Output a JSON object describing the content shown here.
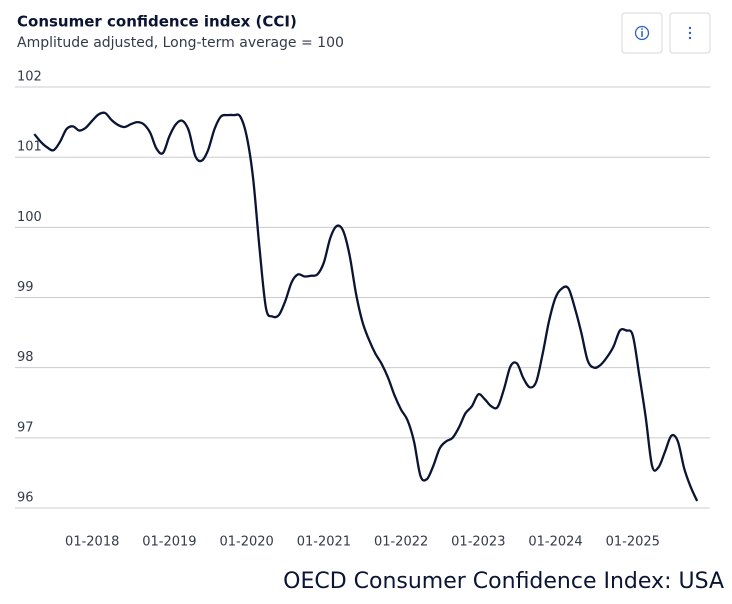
{
  "chart_data": {
    "type": "line",
    "title": "Consumer confidence index (CCI)",
    "subtitle": "Amplitude adjusted, Long-term average = 100",
    "footer": "OECD Consumer Confidence Index: USA",
    "x": [
      "2017-04",
      "2017-05",
      "2017-06",
      "2017-07",
      "2017-08",
      "2017-09",
      "2017-10",
      "2017-11",
      "2017-12",
      "2018-01",
      "2018-02",
      "2018-03",
      "2018-04",
      "2018-05",
      "2018-06",
      "2018-07",
      "2018-08",
      "2018-09",
      "2018-10",
      "2018-11",
      "2018-12",
      "2019-01",
      "2019-02",
      "2019-03",
      "2019-04",
      "2019-05",
      "2019-06",
      "2019-07",
      "2019-08",
      "2019-09",
      "2019-10",
      "2019-11",
      "2019-12",
      "2020-01",
      "2020-02",
      "2020-03",
      "2020-04",
      "2020-05",
      "2020-06",
      "2020-07",
      "2020-08",
      "2020-09",
      "2020-10",
      "2020-11",
      "2020-12",
      "2021-01",
      "2021-02",
      "2021-03",
      "2021-04",
      "2021-05",
      "2021-06",
      "2021-07",
      "2021-08",
      "2021-09",
      "2021-10",
      "2021-11",
      "2021-12",
      "2022-01",
      "2022-02",
      "2022-03",
      "2022-04",
      "2022-05",
      "2022-06",
      "2022-07",
      "2022-08",
      "2022-09",
      "2022-10",
      "2022-11",
      "2022-12",
      "2023-01",
      "2023-02",
      "2023-03",
      "2023-04",
      "2023-05",
      "2023-06",
      "2023-07",
      "2023-08",
      "2023-09",
      "2023-10",
      "2023-11",
      "2023-12",
      "2024-01",
      "2024-02",
      "2024-03",
      "2024-04",
      "2024-05",
      "2024-06",
      "2024-07",
      "2024-08",
      "2024-09",
      "2024-10",
      "2024-11",
      "2024-12",
      "2025-01",
      "2025-02",
      "2025-03",
      "2025-04",
      "2025-05",
      "2025-06",
      "2025-07",
      "2025-08",
      "2025-09",
      "2025-10",
      "2025-11"
    ],
    "series": [
      {
        "name": "CCI",
        "color": "#0b1533",
        "values": [
          101.33,
          101.22,
          101.14,
          101.1,
          101.22,
          101.4,
          101.44,
          101.38,
          101.42,
          101.52,
          101.61,
          101.63,
          101.53,
          101.46,
          101.43,
          101.47,
          101.5,
          101.47,
          101.35,
          101.12,
          101.06,
          101.3,
          101.47,
          101.52,
          101.38,
          101.02,
          100.95,
          101.1,
          101.4,
          101.58,
          101.6,
          101.6,
          101.58,
          101.3,
          100.7,
          99.7,
          98.85,
          98.73,
          98.75,
          98.95,
          99.22,
          99.33,
          99.3,
          99.31,
          99.33,
          99.5,
          99.85,
          100.02,
          99.95,
          99.6,
          99.05,
          98.65,
          98.4,
          98.2,
          98.05,
          97.85,
          97.6,
          97.4,
          97.25,
          96.95,
          96.46,
          96.41,
          96.6,
          96.85,
          96.95,
          97.0,
          97.15,
          97.35,
          97.45,
          97.62,
          97.55,
          97.45,
          97.44,
          97.7,
          98.02,
          98.06,
          97.85,
          97.72,
          97.8,
          98.2,
          98.67,
          99.0,
          99.13,
          99.13,
          98.85,
          98.5,
          98.1,
          98.0,
          98.04,
          98.15,
          98.3,
          98.53,
          98.53,
          98.46,
          97.9,
          97.3,
          96.6,
          96.58,
          96.8,
          97.03,
          96.95,
          96.56,
          96.3,
          96.1
        ]
      }
    ],
    "ylim": [
      95.9,
      102.3
    ],
    "yticks": [
      96,
      97,
      98,
      99,
      100,
      101,
      102
    ],
    "xlim": [
      "2017-01",
      "2026-01"
    ],
    "xticks": [
      {
        "value": "2018-01",
        "label": "01-2018"
      },
      {
        "value": "2019-01",
        "label": "01-2019"
      },
      {
        "value": "2020-01",
        "label": "01-2020"
      },
      {
        "value": "2021-01",
        "label": "01-2021"
      },
      {
        "value": "2022-01",
        "label": "01-2022"
      },
      {
        "value": "2023-01",
        "label": "01-2023"
      },
      {
        "value": "2024-01",
        "label": "01-2024"
      },
      {
        "value": "2025-01",
        "label": "01-2025"
      }
    ],
    "grid": true
  }
}
